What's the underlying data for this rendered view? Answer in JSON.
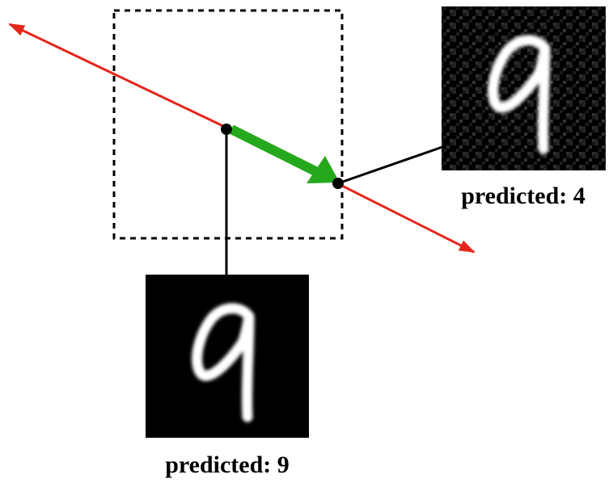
{
  "figure": {
    "original_image": {
      "caption": "predicted: 9",
      "digit": "9"
    },
    "adversarial_image": {
      "caption": "predicted: 4",
      "digit": "9"
    },
    "colors": {
      "decision_line": "#e3271c",
      "perturbation_arrow": "#26a81c",
      "box_border": "#000000",
      "connector": "#000000",
      "image_background": "#000000",
      "digit_stroke": "#ffffff"
    }
  }
}
